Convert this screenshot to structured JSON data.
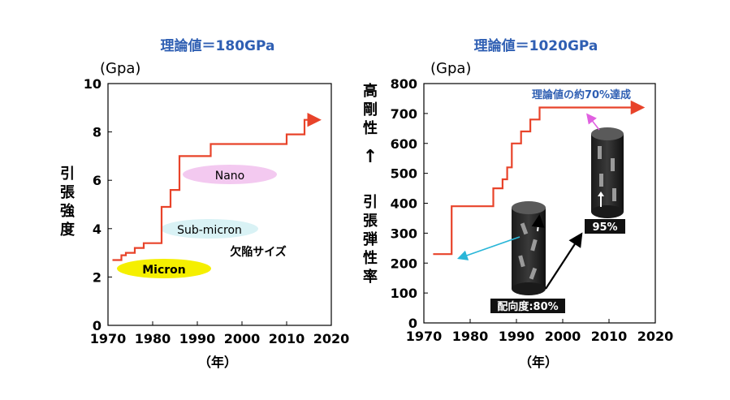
{
  "chart_data": [
    {
      "type": "line",
      "title": "理論値＝180GPa",
      "unit_label": "(Gpa)",
      "ylabel": "引張強度",
      "xlabel": "（年）",
      "xlim": [
        1970,
        2020
      ],
      "ylim": [
        0,
        10
      ],
      "x_ticks": [
        1970,
        1980,
        1990,
        2000,
        2010,
        2020
      ],
      "y_ticks": [
        0,
        2,
        4,
        6,
        8,
        10
      ],
      "series": [
        {
          "color": "#e8432a",
          "step_points": [
            [
              1971,
              2.7
            ],
            [
              1973,
              2.7
            ],
            [
              1973,
              2.9
            ],
            [
              1974,
              2.9
            ],
            [
              1974,
              3.0
            ],
            [
              1976,
              3.0
            ],
            [
              1976,
              3.2
            ],
            [
              1978,
              3.2
            ],
            [
              1978,
              3.4
            ],
            [
              1982,
              3.4
            ],
            [
              1982,
              4.9
            ],
            [
              1984,
              4.9
            ],
            [
              1984,
              5.6
            ],
            [
              1986,
              5.6
            ],
            [
              1986,
              7.0
            ],
            [
              1993,
              7.0
            ],
            [
              1993,
              7.5
            ],
            [
              2010,
              7.5
            ],
            [
              2010,
              7.9
            ],
            [
              2014,
              7.9
            ],
            [
              2014,
              8.5
            ],
            [
              2017,
              8.5
            ]
          ]
        }
      ],
      "labels": {
        "nano": "Nano",
        "sub_micron": "Sub-micron",
        "micron": "Micron",
        "defect": "欠陥サイズ"
      },
      "label_colors": {
        "nano": "#f3c9f0",
        "sub_micron": "#d9f2f5",
        "micron": "#f5ef00"
      }
    },
    {
      "type": "line",
      "title": "理論値＝1020GPa",
      "unit_label": "(Gpa)",
      "ylabel_top": "高剛性",
      "arrow": "↑",
      "ylabel_bottom": "引張弾性率",
      "xlabel": "（年）",
      "xlim": [
        1970,
        2020
      ],
      "ylim": [
        0,
        800
      ],
      "x_ticks": [
        1970,
        1980,
        1990,
        2000,
        2010,
        2020
      ],
      "y_ticks": [
        0,
        100,
        200,
        300,
        400,
        500,
        600,
        700,
        800
      ],
      "series": [
        {
          "color": "#e8432a",
          "step_points": [
            [
              1972,
              230
            ],
            [
              1976,
              230
            ],
            [
              1976,
              390
            ],
            [
              1985,
              390
            ],
            [
              1985,
              450
            ],
            [
              1987,
              450
            ],
            [
              1987,
              480
            ],
            [
              1988,
              480
            ],
            [
              1988,
              520
            ],
            [
              1989,
              520
            ],
            [
              1989,
              600
            ],
            [
              1991,
              600
            ],
            [
              1991,
              640
            ],
            [
              1993,
              640
            ],
            [
              1993,
              680
            ],
            [
              1995,
              680
            ],
            [
              1995,
              720
            ],
            [
              2017,
              720
            ]
          ]
        }
      ],
      "labels": {
        "target": "理論値の約70%達成",
        "orientation_80": "配向度:80%",
        "orientation_95": "95%"
      }
    }
  ]
}
